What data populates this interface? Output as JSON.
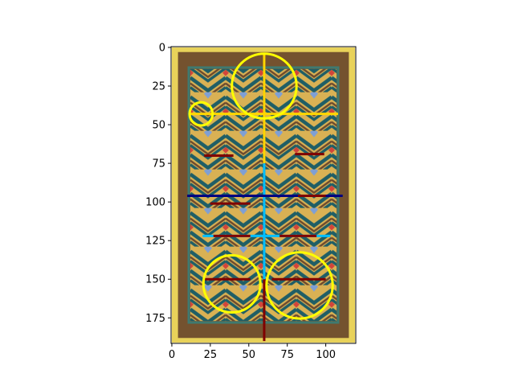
{
  "chart_data": {
    "type": "image-plot",
    "title": "",
    "xlabel": "",
    "ylabel": "",
    "xlim": [
      -0.5,
      119.5
    ],
    "ylim": [
      191.5,
      -0.5
    ],
    "x_ticks": [
      {
        "value": 0,
        "label": "0"
      },
      {
        "value": 25,
        "label": "25"
      },
      {
        "value": 50,
        "label": "50"
      },
      {
        "value": 75,
        "label": "75"
      },
      {
        "value": 100,
        "label": "100"
      }
    ],
    "y_ticks": [
      {
        "value": 0,
        "label": "0"
      },
      {
        "value": 25,
        "label": "25"
      },
      {
        "value": 50,
        "label": "50"
      },
      {
        "value": 75,
        "label": "75"
      },
      {
        "value": 100,
        "label": "100"
      },
      {
        "value": 125,
        "label": "125"
      },
      {
        "value": 150,
        "label": "150"
      },
      {
        "value": 175,
        "label": "175"
      }
    ],
    "image": "woven rug with brown border and yellow, teal, blue and red chevron pattern",
    "circles": [
      {
        "cx": 60,
        "cy": 25,
        "r": 21,
        "color": "#ffff00"
      },
      {
        "cx": 19,
        "cy": 43,
        "r": 7.5,
        "color": "#ffff00"
      },
      {
        "cx": 39,
        "cy": 153,
        "r": 18.5,
        "color": "#ffff00"
      },
      {
        "cx": 83,
        "cy": 154,
        "r": 21.5,
        "color": "#ffff00"
      }
    ],
    "segments": [
      {
        "x1": 60,
        "y1": 4,
        "x2": 60,
        "y2": 190,
        "color": "#800000",
        "width": 3
      },
      {
        "x1": 60,
        "y1": 4,
        "x2": 60,
        "y2": 75,
        "color": "#ffd700",
        "width": 3
      },
      {
        "x1": 60,
        "y1": 75,
        "x2": 60,
        "y2": 150,
        "color": "#00bfff",
        "width": 3
      },
      {
        "x1": 12,
        "y1": 43,
        "x2": 108,
        "y2": 43,
        "color": "#ffd700",
        "width": 3
      },
      {
        "x1": 21,
        "y1": 70,
        "x2": 40,
        "y2": 70,
        "color": "#800000",
        "width": 3
      },
      {
        "x1": 80,
        "y1": 69,
        "x2": 99,
        "y2": 69,
        "color": "#800000",
        "width": 3
      },
      {
        "x1": 10,
        "y1": 96,
        "x2": 111,
        "y2": 96,
        "color": "#000080",
        "width": 3
      },
      {
        "x1": 25,
        "y1": 101,
        "x2": 51,
        "y2": 101,
        "color": "#800000",
        "width": 3
      },
      {
        "x1": 82,
        "y1": 96,
        "x2": 100,
        "y2": 96,
        "color": "#800000",
        "width": 3
      },
      {
        "x1": 20,
        "y1": 122,
        "x2": 103,
        "y2": 122,
        "color": "#00bfff",
        "width": 3
      },
      {
        "x1": 27,
        "y1": 122,
        "x2": 51,
        "y2": 122,
        "color": "#800000",
        "width": 3
      },
      {
        "x1": 70,
        "y1": 122,
        "x2": 94,
        "y2": 122,
        "color": "#800000",
        "width": 3
      },
      {
        "x1": 21,
        "y1": 150,
        "x2": 51,
        "y2": 150,
        "color": "#800000",
        "width": 3
      },
      {
        "x1": 65,
        "y1": 150,
        "x2": 100,
        "y2": 150,
        "color": "#800000",
        "width": 3
      }
    ]
  },
  "colors": {
    "rug_outer": "#e8d25a",
    "rug_border": "#74522f",
    "rug_inner_edge": "#3f7a70",
    "field_yellow": "#d9b154",
    "teal": "#1f5e66",
    "blue": "#7f9fd4",
    "red": "#d2453a",
    "brown": "#6d4a2e"
  }
}
